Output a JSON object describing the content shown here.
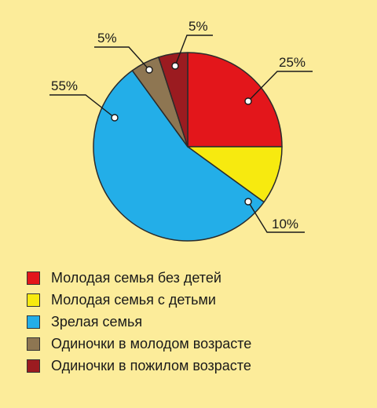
{
  "chart_data": {
    "type": "pie",
    "title": "",
    "slices": [
      {
        "label": "Молодая семья без детей",
        "value": 25,
        "value_label": "25%",
        "color": "#e3161b"
      },
      {
        "label": "Молодая семья с детьми",
        "value": 10,
        "value_label": "10%",
        "color": "#f7ea0f"
      },
      {
        "label": "Зрелая семья",
        "value": 55,
        "value_label": "55%",
        "color": "#23aee8"
      },
      {
        "label": "Одиночки в молодом возрасте",
        "value": 5,
        "value_label": "5%",
        "color": "#8e7652"
      },
      {
        "label": "Одиночки в пожилом возрасте",
        "value": 5,
        "value_label": "5%",
        "color": "#9b1b20"
      }
    ],
    "start_angle_deg": 0,
    "direction": "clockwise",
    "legend": "bottom-left"
  },
  "background_color": "#fcec9a"
}
